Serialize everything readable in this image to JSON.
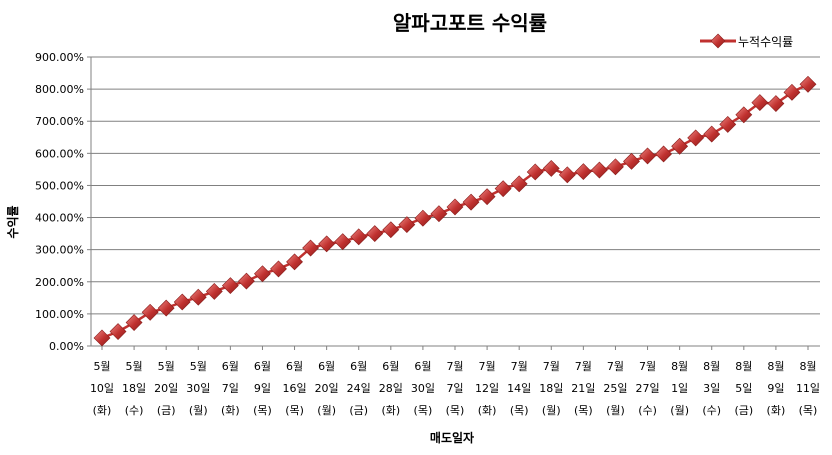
{
  "chart_data": {
    "type": "line",
    "title": "알파고포트 수익률",
    "xlabel": "매도일자",
    "ylabel": "수익률",
    "ylim": [
      0,
      900
    ],
    "yticks": [
      "0.00%",
      "100.00%",
      "200.00%",
      "300.00%",
      "400.00%",
      "500.00%",
      "600.00%",
      "700.00%",
      "800.00%",
      "900.00%"
    ],
    "legend_position": "top-right",
    "grid": "horizontal",
    "series_color": "#c0312f",
    "xtick_labels": [
      [
        "5월",
        "10일",
        "(화)"
      ],
      [
        "5월",
        "18일",
        "(수)"
      ],
      [
        "5월",
        "20일",
        "(금)"
      ],
      [
        "5월",
        "30일",
        "(월)"
      ],
      [
        "6월",
        "7일",
        "(화)"
      ],
      [
        "6월",
        "9일",
        "(목)"
      ],
      [
        "6월",
        "16일",
        "(목)"
      ],
      [
        "6월",
        "20일",
        "(월)"
      ],
      [
        "6월",
        "24일",
        "(금)"
      ],
      [
        "6월",
        "28일",
        "(화)"
      ],
      [
        "6월",
        "30일",
        "(목)"
      ],
      [
        "7월",
        "7일",
        "(목)"
      ],
      [
        "7월",
        "12일",
        "(화)"
      ],
      [
        "7월",
        "14일",
        "(목)"
      ],
      [
        "7월",
        "18일",
        "(월)"
      ],
      [
        "7월",
        "21일",
        "(목)"
      ],
      [
        "7월",
        "25일",
        "(월)"
      ],
      [
        "7월",
        "27일",
        "(수)"
      ],
      [
        "8월",
        "1일",
        "(월)"
      ],
      [
        "8월",
        "3일",
        "(수)"
      ],
      [
        "8월",
        "5일",
        "(금)"
      ],
      [
        "8월",
        "9일",
        "(화)"
      ],
      [
        "8월",
        "11일",
        "(목)"
      ]
    ],
    "series": [
      {
        "name": "누적수익률",
        "values": [
          25,
          45,
          73,
          105,
          118,
          137,
          152,
          170,
          188,
          202,
          225,
          240,
          262,
          305,
          318,
          325,
          340,
          350,
          362,
          378,
          398,
          412,
          433,
          448,
          465,
          490,
          505,
          542,
          553,
          533,
          543,
          548,
          558,
          575,
          592,
          598,
          622,
          648,
          660,
          690,
          720,
          758,
          755,
          790,
          815
        ]
      }
    ]
  }
}
